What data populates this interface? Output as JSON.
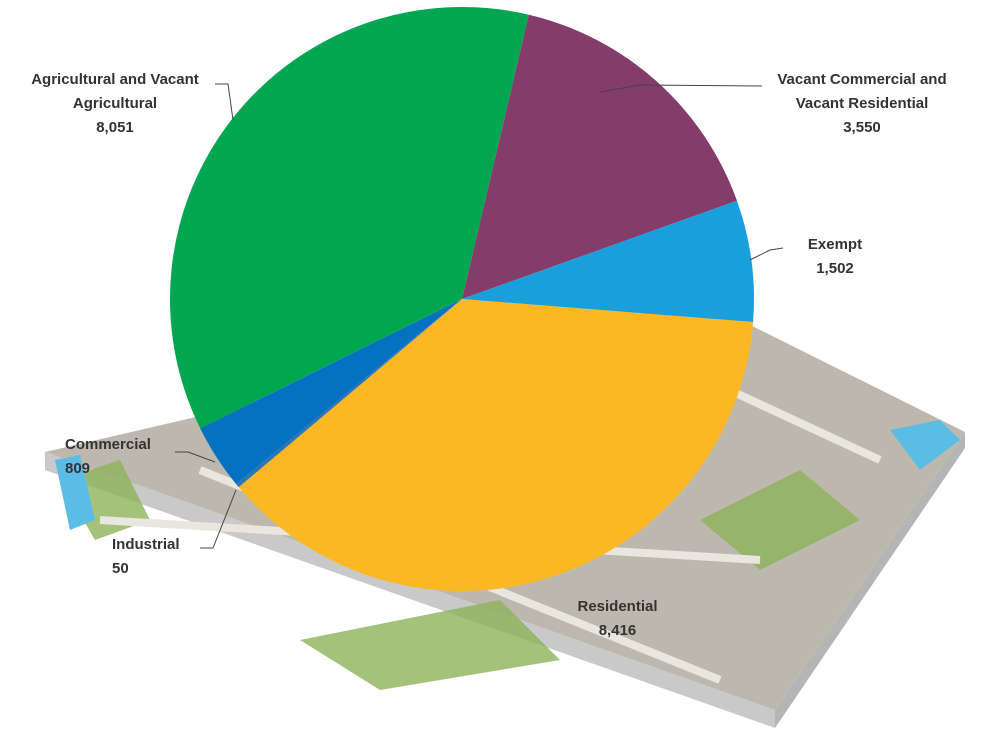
{
  "chart_data": {
    "type": "pie",
    "categories": [
      "Residential",
      "Industrial",
      "Commercial",
      "Agricultural and Vacant Agricultural",
      "Vacant Commercial and Vacant Residential",
      "Exempt"
    ],
    "values": [
      8416,
      50,
      809,
      8051,
      3550,
      1502
    ],
    "value_labels": [
      "8,416",
      "50",
      "809",
      "8,051",
      "3,550",
      "1,502"
    ],
    "colors": [
      "#fbb724",
      "#2e75b6",
      "#0572c1",
      "#00a650",
      "#843c6a",
      "#1a9fdc"
    ]
  }
}
